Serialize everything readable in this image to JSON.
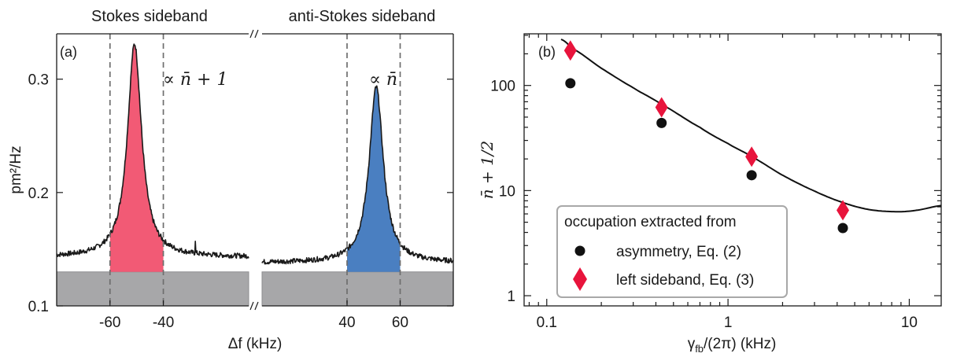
{
  "chart_data": [
    {
      "panel_label": "(a)",
      "type": "line",
      "xlabel": "Δf (kHz)",
      "ylabel": "pm²/Hz",
      "ylim": [
        0.1,
        0.34
      ],
      "yticks": [
        0.1,
        0.2,
        0.3
      ],
      "ytick_labels": [
        "0.1",
        "0.2",
        "0.3"
      ],
      "xticks": [
        -60,
        -40,
        40,
        60
      ],
      "xtick_labels": [
        "-60",
        "-40",
        "40",
        "60"
      ],
      "broken_axis": true,
      "break_symbol": "//",
      "noise_floor": 0.13,
      "annotations": {
        "stokes_header": "Stokes sideband",
        "anti_stokes_header": "anti-Stokes sideband",
        "stokes_prop": "∝ n̄ + 1",
        "anti_stokes_prop": "∝ n̄"
      },
      "segments": [
        {
          "name": "Stokes sideband",
          "xlim": [
            -80,
            -8
          ],
          "fill_range": [
            -60,
            -40
          ],
          "fill_color": "#f25a75",
          "dashed_lines": [
            -60,
            -40
          ],
          "peak_center": -50.8,
          "peak_height": 0.331,
          "baseline": 0.143,
          "spike_x": -28,
          "spike_y": 0.157
        },
        {
          "name": "anti-Stokes sideband",
          "xlim": [
            8,
            80
          ],
          "fill_range": [
            40,
            60
          ],
          "fill_color": "#4a7fc1",
          "dashed_lines": [
            40,
            60
          ],
          "peak_center": 51,
          "peak_height": 0.293,
          "baseline": 0.138
        }
      ]
    },
    {
      "panel_label": "(b)",
      "type": "scatter",
      "xlabel": "γ_fb/(2π) (kHz)",
      "xlabel_parts": {
        "gamma": "γ",
        "sub": "fb",
        "rest": "/(2π) (kHz)"
      },
      "ylabel": "n̄ + 1/2",
      "xscale": "log",
      "yscale": "log",
      "xlim": [
        0.075,
        15
      ],
      "ylim": [
        0.8,
        310
      ],
      "xticks": [
        0.1,
        1,
        10
      ],
      "xtick_labels": [
        "0.1",
        "1",
        "10"
      ],
      "yticks": [
        1,
        10,
        100
      ],
      "ytick_labels": [
        "1",
        "10",
        "100"
      ],
      "legend": {
        "title": "occupation extracted from",
        "placement": "bottom-left"
      },
      "series": [
        {
          "name": "asymmetry, Eq. (2)",
          "marker": "circle",
          "color": "#111111",
          "x": [
            0.135,
            0.43,
            1.35,
            4.3
          ],
          "y": [
            105,
            44,
            14,
            4.4
          ]
        },
        {
          "name": "left sideband, Eq. (3)",
          "marker": "diamond",
          "color": "#e8143c",
          "x": [
            0.135,
            0.43,
            1.35,
            4.3
          ],
          "y": [
            215,
            62,
            21,
            6.5
          ]
        },
        {
          "marker": "line",
          "color": "#111111",
          "x": [
            0.12,
            0.135,
            0.2,
            0.3,
            0.43,
            0.7,
            1.0,
            1.35,
            2.0,
            3.0,
            4.3,
            6.0,
            8.5,
            11.0,
            15.0
          ],
          "y": [
            275,
            230,
            146,
            95,
            66,
            40,
            28,
            21,
            14,
            9.9,
            7.7,
            6.6,
            6.3,
            6.5,
            7.2
          ]
        }
      ]
    }
  ]
}
